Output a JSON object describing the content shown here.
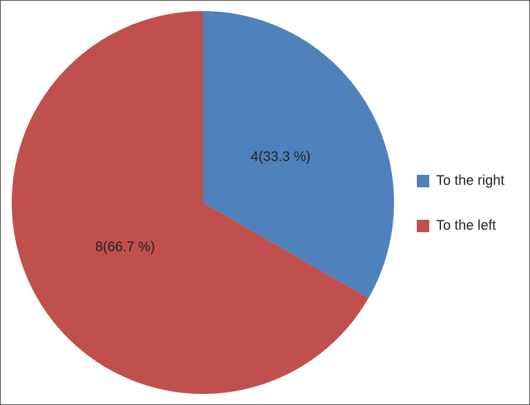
{
  "chart_data": {
    "type": "pie",
    "categories": [
      "To the right",
      "To the left"
    ],
    "values": [
      4,
      8
    ],
    "value_labels": [
      "4(33.3 %)",
      "8(66.7 %)"
    ],
    "colors": [
      "#4f81bd",
      "#c0504d"
    ],
    "legend": "right"
  }
}
